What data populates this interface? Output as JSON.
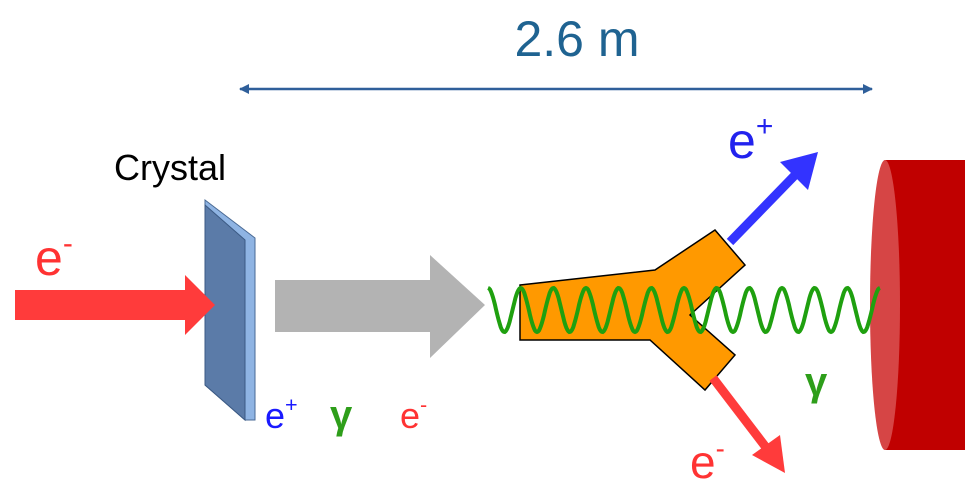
{
  "dimension_label": "2.6 m",
  "crystal_label": "Crystal",
  "incoming_beam": {
    "symbol": "e",
    "charge": "-"
  },
  "crystal_products": [
    {
      "symbol": "e",
      "charge": "+"
    },
    {
      "symbol": "γ"
    },
    {
      "symbol": "e",
      "charge": "-"
    }
  ],
  "outgoing": {
    "positron": {
      "symbol": "e",
      "charge": "+"
    },
    "photon": {
      "symbol": "γ"
    },
    "electron": {
      "symbol": "e",
      "charge": "-"
    }
  }
}
